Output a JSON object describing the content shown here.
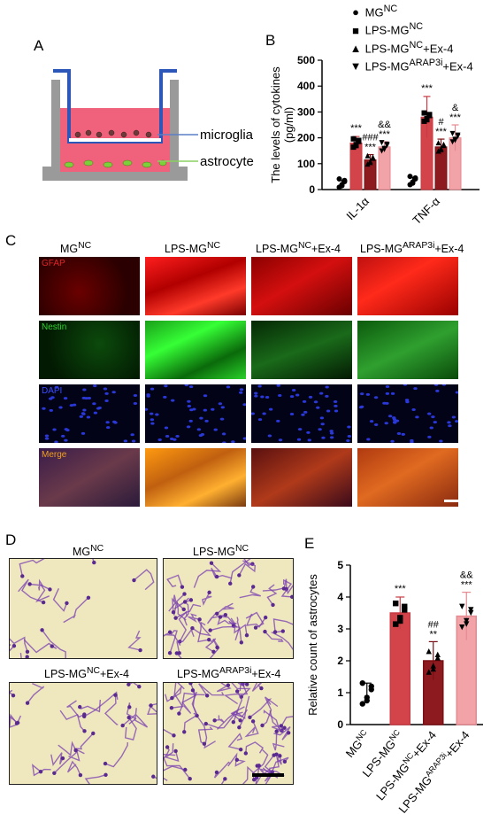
{
  "panels": {
    "a": "A",
    "b": "B",
    "c": "C",
    "d": "D",
    "e": "E"
  },
  "panelA": {
    "label_top": "microglia",
    "label_bottom": "astrocyte"
  },
  "groups": {
    "g1": {
      "base": "MG",
      "sup": "NC",
      "tail": ""
    },
    "g2": {
      "base": "LPS-MG",
      "sup": "NC",
      "tail": ""
    },
    "g3": {
      "base": "LPS-MG",
      "sup": "NC",
      "tail": "+Ex-4"
    },
    "g4": {
      "base": "LPS-MG",
      "sup": "ARAP3i",
      "tail": "+Ex-4"
    }
  },
  "panelC": {
    "stains": [
      "GFAP",
      "Nestin",
      "DAPI",
      "Merge"
    ]
  },
  "chart_data": [
    {
      "id": "B",
      "type": "bar",
      "categories": [
        "IL-1α",
        "TNF-α"
      ],
      "ylabel": "The levels of cytokines (pg/ml)",
      "ylim": [
        0,
        500
      ],
      "yticks": [
        "0",
        "100",
        "200",
        "300",
        "400",
        "500"
      ],
      "series": [
        {
          "name": "MG^NC",
          "marker": "circle",
          "values": [
            25,
            35
          ]
        },
        {
          "name": "LPS-MG^NC",
          "marker": "square",
          "values": [
            180,
            280
          ]
        },
        {
          "name": "LPS-MG^NC+Ex-4",
          "marker": "triangle-up",
          "values": [
            115,
            165
          ]
        },
        {
          "name": "LPS-MG^ARAP3i+Ex-4",
          "marker": "triangle-down",
          "values": [
            165,
            200
          ]
        }
      ],
      "errors": [
        [
          10,
          12
        ],
        [
          25,
          80
        ],
        [
          20,
          30
        ],
        [
          20,
          50
        ]
      ],
      "annotations": [
        [
          "",
          "***",
          "###",
          "&&"
        ],
        [
          "",
          "***",
          "#",
          "&"
        ]
      ],
      "annotations2": [
        [
          "",
          "",
          "***",
          "***"
        ],
        [
          "",
          "",
          "***",
          "***"
        ]
      ]
    },
    {
      "id": "E",
      "type": "bar",
      "categories": [
        "MG^NC",
        "LPS-MG^NC",
        "LPS-MG^NC+Ex-4",
        "LPS-MG^ARAP3i+Ex-4"
      ],
      "ylabel": "Relative count of astrocytes",
      "ylim": [
        0,
        5
      ],
      "yticks": [
        "0",
        "1",
        "2",
        "3",
        "4",
        "5"
      ],
      "values": [
        1.0,
        3.5,
        2.0,
        3.4
      ],
      "errors": [
        0.3,
        0.5,
        0.6,
        0.75
      ],
      "markers": [
        "circle",
        "square",
        "triangle-up",
        "triangle-down"
      ],
      "annotations": [
        "",
        "***",
        "##",
        "&&"
      ],
      "annotations2": [
        "",
        "",
        "**",
        "***"
      ]
    }
  ]
}
